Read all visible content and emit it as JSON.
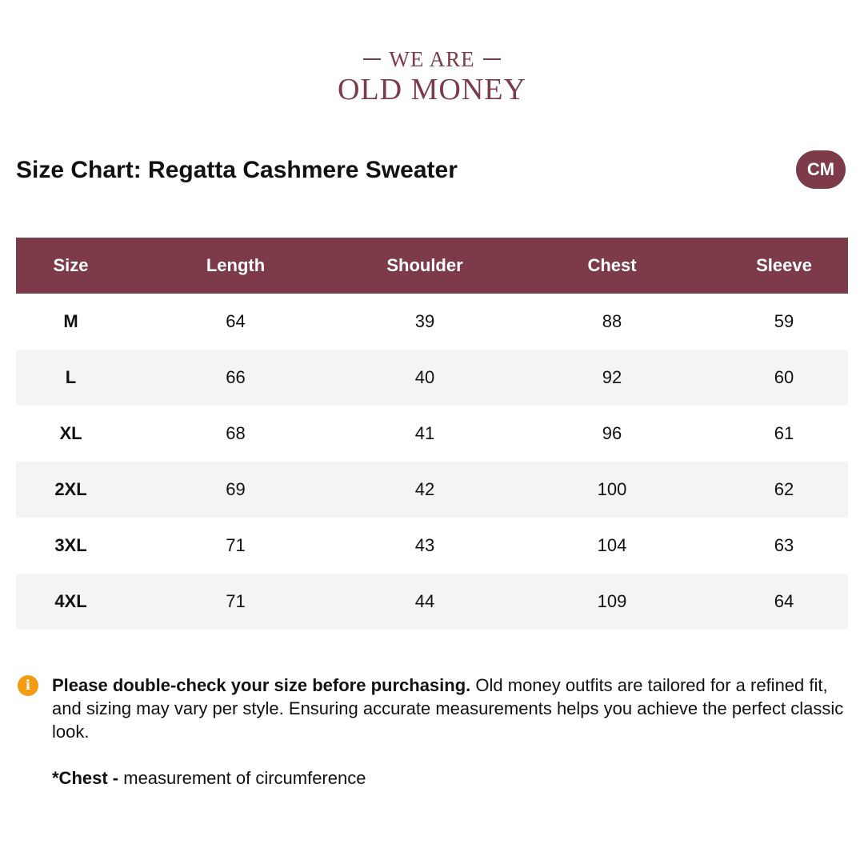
{
  "brand": {
    "top_line": "WE ARE",
    "bottom_line": "OLD MONEY"
  },
  "header": {
    "title": "Size Chart: Regatta Cashmere Sweater",
    "unit_badge": "CM"
  },
  "table": {
    "columns": [
      "Size",
      "Length",
      "Shoulder",
      "Chest",
      "Sleeve"
    ],
    "rows": [
      [
        "M",
        "64",
        "39",
        "88",
        "59"
      ],
      [
        "L",
        "66",
        "40",
        "92",
        "60"
      ],
      [
        "XL",
        "68",
        "41",
        "96",
        "61"
      ],
      [
        "2XL",
        "69",
        "42",
        "100",
        "62"
      ],
      [
        "3XL",
        "71",
        "43",
        "104",
        "63"
      ],
      [
        "4XL",
        "71",
        "44",
        "109",
        "64"
      ]
    ]
  },
  "note": {
    "icon": "info-icon",
    "icon_glyph": "i",
    "bold": "Please double-check your size before purchasing.",
    "text": " Old money outfits are tailored for a refined fit, and sizing may vary per style. Ensuring accurate measurements helps you achieve the perfect classic look."
  },
  "footnote": {
    "bold": "*Chest -",
    "text": " measurement of circumference"
  },
  "colors": {
    "brand": "#7d3b4a",
    "row_alt": "#f4f4f4",
    "info_icon": "#f39c12"
  }
}
